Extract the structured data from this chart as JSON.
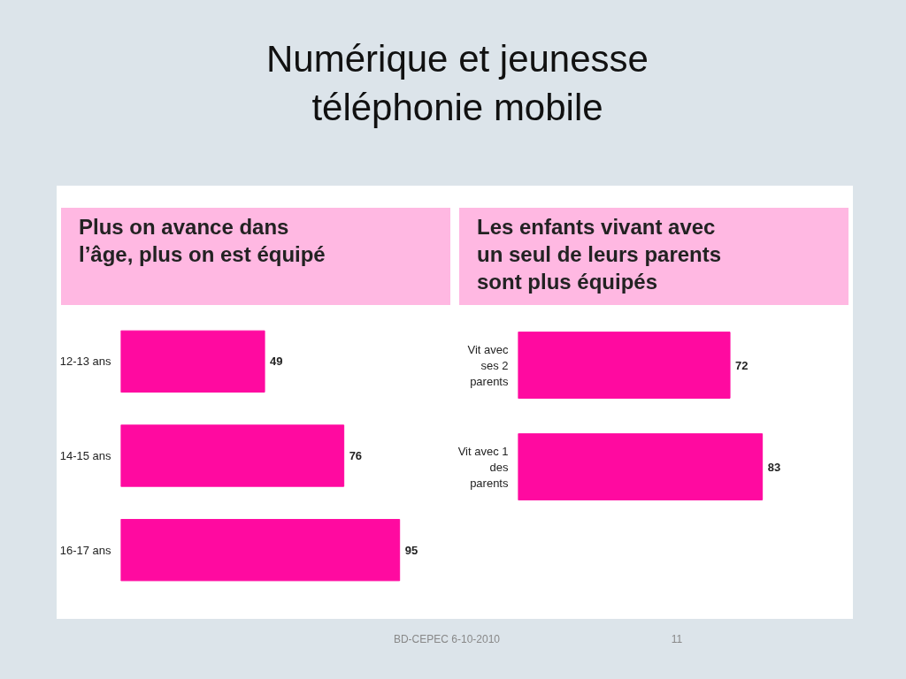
{
  "chart_data": [
    {
      "type": "bar",
      "orientation": "horizontal",
      "title": "Numérique et jeunesse\ntéléphonie mobile",
      "subtitle": "Plus on avance dans\nl’âge, plus on est équipé",
      "categories": [
        "12-13 ans",
        "14-15 ans",
        "16-17 ans"
      ],
      "values": [
        49,
        76,
        95
      ],
      "color": "#ff0aa0",
      "data_labels": true,
      "tick_labels": "y",
      "grid": false
    },
    {
      "type": "bar",
      "orientation": "horizontal",
      "title": "Les enfants vivant avec\nun seul de leurs parents\nsont plus équipés",
      "categories": [
        "Vit avec\nses 2\nparents",
        "Vit avec 1\ndes\nparents"
      ],
      "values": [
        72,
        83
      ],
      "color": "#ff0aa0",
      "data_labels": true,
      "tick_labels": "y",
      "grid": false,
      "annotations": [
        "BD-CEPEC 6-10-2010",
        "11"
      ]
    }
  ]
}
